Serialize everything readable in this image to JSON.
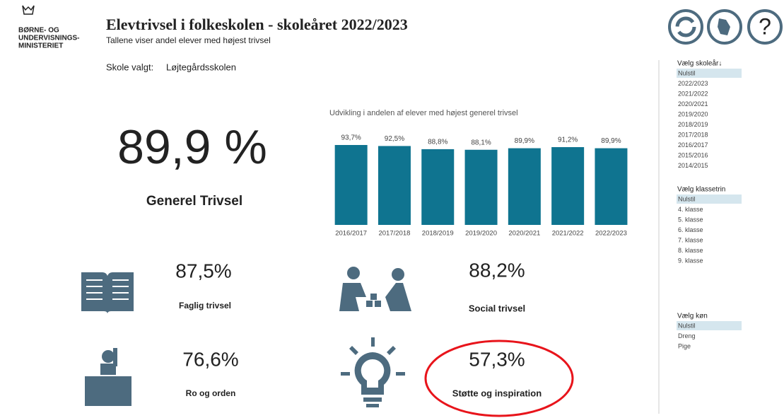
{
  "header": {
    "logo": [
      "BØRNE- OG",
      "UNDERVISNINGS-",
      "MINISTERIET"
    ],
    "title": "Elevtrivsel i folkeskolen - skoleåret 2022/2023",
    "subtitle": "Tallene viser andel elever med højest trivsel",
    "school_label": "Skole valgt:",
    "school": "Løjtegårdsskolen"
  },
  "main_kpi": {
    "value": "89,9 %",
    "label": "Generel Trivsel"
  },
  "kpis": [
    {
      "value": "87,5%",
      "label": "Faglig trivsel"
    },
    {
      "value": "88,2%",
      "label": "Social trivsel"
    },
    {
      "value": "76,6%",
      "label": "Ro og orden"
    },
    {
      "value": "57,3%",
      "label": "Støtte og inspiration"
    }
  ],
  "chart_data": {
    "type": "bar",
    "title": "Udvikling i andelen af elever med højest generel trivsel",
    "categories": [
      "2016/2017",
      "2017/2018",
      "2018/2019",
      "2019/2020",
      "2020/2021",
      "2021/2022",
      "2022/2023"
    ],
    "values": [
      93.7,
      92.5,
      88.8,
      88.1,
      89.9,
      91.2,
      89.9
    ],
    "value_labels": [
      "93,7%",
      "92,5%",
      "88,8%",
      "88,1%",
      "89,9%",
      "91,2%",
      "89,9%"
    ],
    "color": "#0f7490"
  },
  "filters": [
    {
      "title": "Vælg skoleår↓",
      "items": [
        "Nulstil",
        "2022/2023",
        "2021/2022",
        "2020/2021",
        "2019/2020",
        "2018/2019",
        "2017/2018",
        "2016/2017",
        "2015/2016",
        "2014/2015"
      ]
    },
    {
      "title": "Vælg klassetrin",
      "items": [
        "Nulstil",
        "4. klasse",
        "5. klasse",
        "6. klasse",
        "7. klasse",
        "8. klasse",
        "9. klasse"
      ]
    },
    {
      "title": "Vælg køn",
      "items": [
        "Nulstil",
        "Dreng",
        "Pige"
      ]
    }
  ]
}
